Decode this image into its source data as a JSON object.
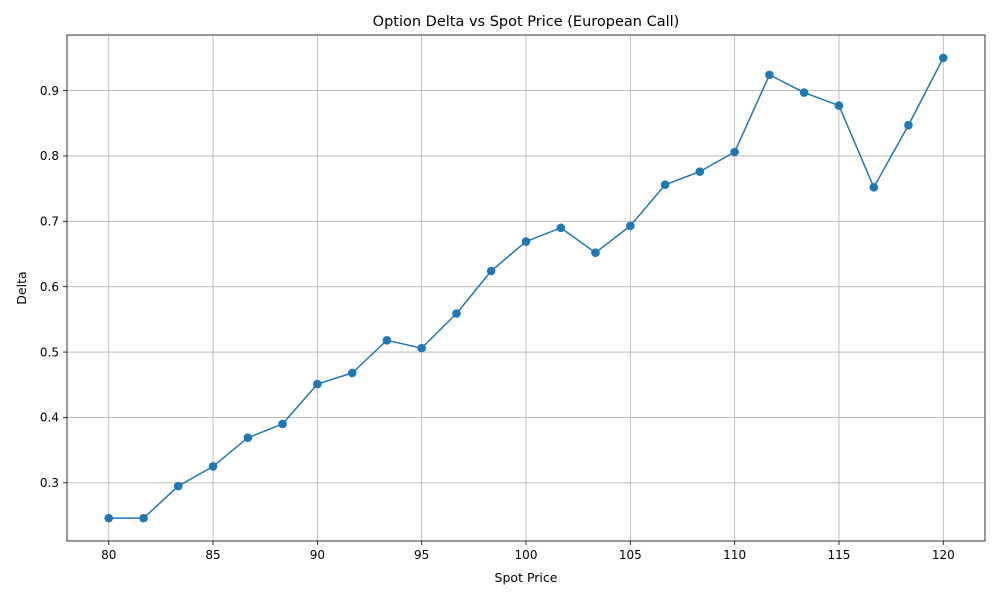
{
  "chart_data": {
    "type": "line",
    "title": "Option Delta vs Spot Price (European Call)",
    "xlabel": "Spot Price",
    "ylabel": "Delta",
    "xlim": [
      78.0,
      122.0
    ],
    "ylim": [
      0.211,
      0.985
    ],
    "xticks": [
      80,
      85,
      90,
      95,
      100,
      105,
      110,
      115,
      120
    ],
    "yticks": [
      0.3,
      0.4,
      0.5,
      0.6,
      0.7,
      0.8,
      0.9
    ],
    "xtick_labels": [
      "80",
      "85",
      "90",
      "95",
      "100",
      "105",
      "110",
      "115",
      "120"
    ],
    "ytick_labels": [
      "0.3",
      "0.4",
      "0.5",
      "0.6",
      "0.7",
      "0.8",
      "0.9"
    ],
    "grid": true,
    "legend": false,
    "line_color": "#1f77b4",
    "marker": "circle",
    "series": [
      {
        "x": [
          80.0,
          81.67,
          83.33,
          85.0,
          86.67,
          88.33,
          90.0,
          91.67,
          93.33,
          95.0,
          96.67,
          98.33,
          100.0,
          101.67,
          103.33,
          105.0,
          106.67,
          108.33,
          110.0,
          111.67,
          113.33,
          115.0,
          116.67,
          118.33,
          120.0
        ],
        "y": [
          0.246,
          0.246,
          0.295,
          0.325,
          0.369,
          0.39,
          0.451,
          0.468,
          0.518,
          0.506,
          0.559,
          0.624,
          0.669,
          0.69,
          0.652,
          0.693,
          0.756,
          0.776,
          0.806,
          0.924,
          0.897,
          0.877,
          0.752,
          0.847,
          0.95
        ]
      }
    ]
  }
}
